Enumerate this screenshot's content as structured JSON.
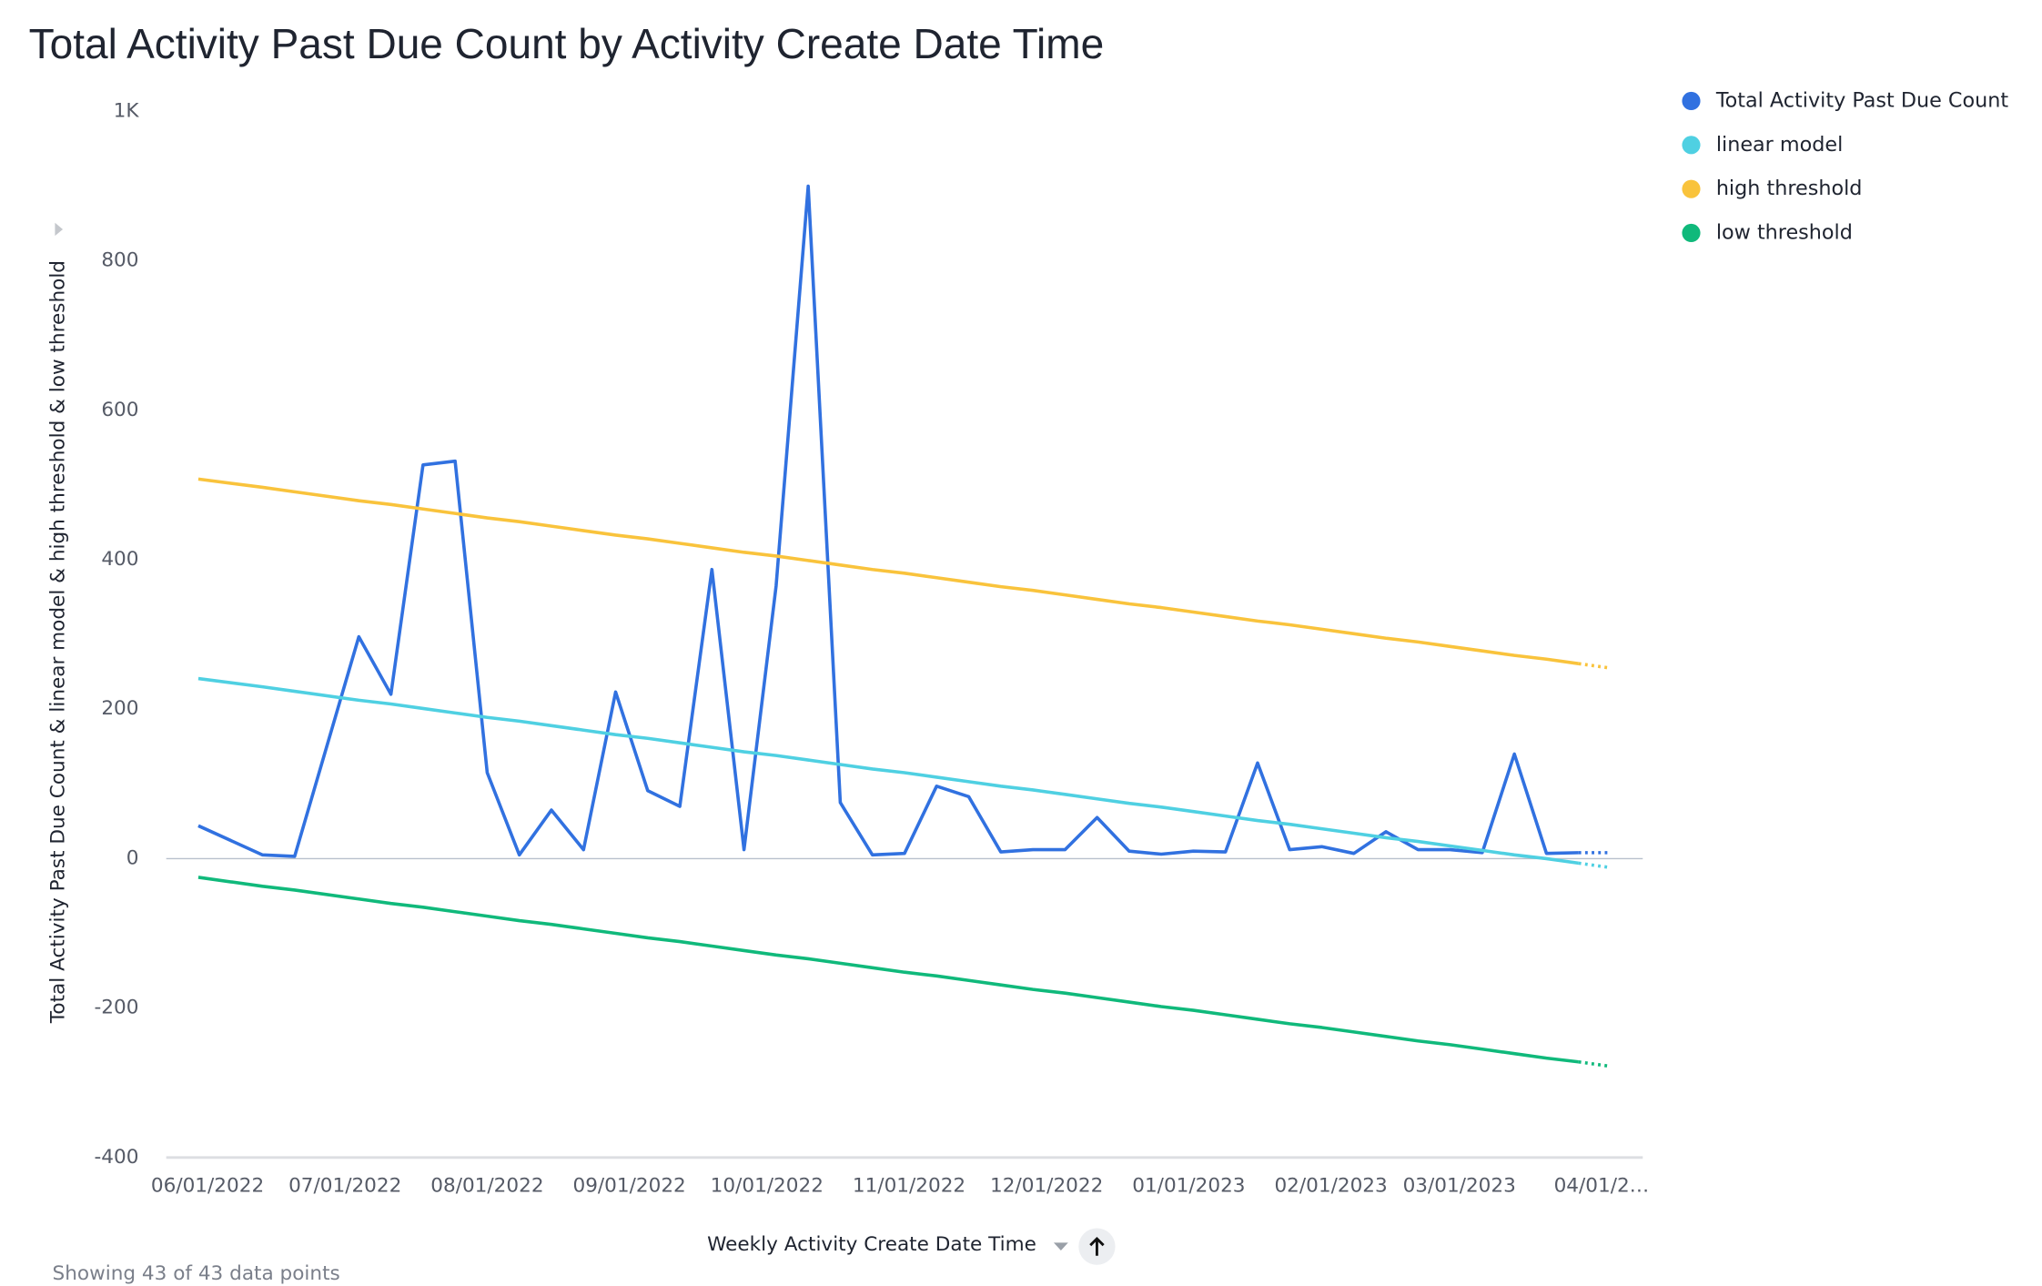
{
  "chart_data": {
    "type": "line",
    "title": "Total Activity Past Due Count by Activity Create Date Time",
    "y_label": "Total Activity Past Due Count & linear model & high threshold & low threshold",
    "x_label": "Weekly Activity Create Date Time",
    "footer": "Showing 43 of 43 data points",
    "x": [
      "2022-05-30",
      "2022-06-13",
      "2022-06-20",
      "2022-07-04",
      "2022-07-11",
      "2022-07-18",
      "2022-07-25",
      "2022-08-01",
      "2022-08-08",
      "2022-08-15",
      "2022-08-22",
      "2022-08-29",
      "2022-09-05",
      "2022-09-12",
      "2022-09-19",
      "2022-09-26",
      "2022-10-03",
      "2022-10-10",
      "2022-10-17",
      "2022-10-24",
      "2022-10-31",
      "2022-11-07",
      "2022-11-14",
      "2022-11-21",
      "2022-11-28",
      "2022-12-05",
      "2022-12-12",
      "2022-12-19",
      "2022-12-26",
      "2023-01-02",
      "2023-01-09",
      "2023-01-16",
      "2023-01-23",
      "2023-01-30",
      "2023-02-06",
      "2023-02-13",
      "2023-02-20",
      "2023-02-27",
      "2023-03-06",
      "2023-03-13",
      "2023-03-20",
      "2023-03-27",
      "2023-04-03"
    ],
    "series": [
      {
        "name": "Total Activity Past Due Count",
        "color": "#3171e0",
        "values": [
          44,
          5,
          3,
          297,
          220,
          527,
          532,
          115,
          5,
          65,
          12,
          223,
          91,
          70,
          387,
          12,
          365,
          900,
          75,
          5,
          7,
          97,
          83,
          9,
          12,
          12,
          55,
          10,
          6,
          10,
          9,
          128,
          12,
          16,
          7,
          36,
          12,
          12,
          8,
          140,
          7,
          8,
          8
        ]
      },
      {
        "name": "linear model",
        "color": "#4fd0e2",
        "values": [
          241,
          230,
          224,
          212,
          207,
          201,
          195,
          189,
          184,
          178,
          172,
          166,
          161,
          155,
          149,
          143,
          138,
          132,
          126,
          120,
          115,
          109,
          103,
          97,
          92,
          86,
          80,
          74,
          69,
          63,
          57,
          51,
          46,
          40,
          34,
          28,
          23,
          17,
          11,
          5,
          0,
          -6,
          -12
        ]
      },
      {
        "name": "high threshold",
        "color": "#f9c33c",
        "values": [
          508,
          497,
          491,
          479,
          474,
          468,
          462,
          456,
          451,
          445,
          439,
          433,
          428,
          422,
          416,
          410,
          405,
          399,
          393,
          387,
          382,
          376,
          370,
          364,
          359,
          353,
          347,
          341,
          336,
          330,
          324,
          318,
          313,
          307,
          301,
          295,
          290,
          284,
          278,
          272,
          267,
          261,
          255
        ]
      },
      {
        "name": "low threshold",
        "color": "#10b97b",
        "values": [
          -25,
          -37,
          -42,
          -54,
          -60,
          -65,
          -71,
          -77,
          -83,
          -88,
          -94,
          -100,
          -106,
          -111,
          -117,
          -123,
          -129,
          -134,
          -140,
          -146,
          -152,
          -157,
          -163,
          -169,
          -175,
          -180,
          -186,
          -192,
          -198,
          -203,
          -209,
          -215,
          -221,
          -226,
          -232,
          -238,
          -244,
          -249,
          -255,
          -261,
          -267,
          -272,
          -278
        ]
      }
    ],
    "xlim": [
      "2022-05-23",
      "2023-04-10"
    ],
    "xticks": [
      {
        "value": "2022-06-01",
        "label": "06/01/2022"
      },
      {
        "value": "2022-07-01",
        "label": "07/01/2022"
      },
      {
        "value": "2022-08-01",
        "label": "08/01/2022"
      },
      {
        "value": "2022-09-01",
        "label": "09/01/2022"
      },
      {
        "value": "2022-10-01",
        "label": "10/01/2022"
      },
      {
        "value": "2022-11-01",
        "label": "11/01/2022"
      },
      {
        "value": "2022-12-01",
        "label": "12/01/2022"
      },
      {
        "value": "2023-01-01",
        "label": "01/01/2023"
      },
      {
        "value": "2023-02-01",
        "label": "02/01/2023"
      },
      {
        "value": "2023-03-01",
        "label": "03/01/2023"
      },
      {
        "value": "2023-04-01",
        "label": "04/01/2…"
      }
    ],
    "ylim": [
      -400,
      1000
    ],
    "yticks": [
      -400,
      -200,
      0,
      200,
      400,
      600,
      800,
      {
        "value": 1000,
        "label": "1K"
      }
    ],
    "legend": "top-right"
  }
}
